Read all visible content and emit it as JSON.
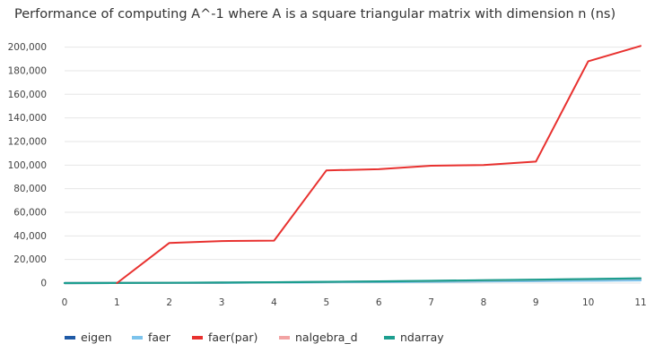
{
  "chart_data": {
    "type": "line",
    "title": "Performance of computing A^-1 where A is a square triangular matrix with dimension n (ns)",
    "xlabel": "",
    "ylabel": "",
    "x": [
      0,
      1,
      2,
      3,
      4,
      5,
      6,
      7,
      8,
      9,
      10,
      11
    ],
    "x_ticks": [
      "0",
      "1",
      "2",
      "3",
      "4",
      "5",
      "6",
      "7",
      "8",
      "9",
      "10",
      "11"
    ],
    "xlim": [
      0,
      11
    ],
    "ylim": [
      0,
      202000
    ],
    "y_ticks": [
      0,
      20000,
      40000,
      60000,
      80000,
      100000,
      120000,
      140000,
      160000,
      180000,
      200000
    ],
    "y_tick_labels": [
      "0",
      "20,000",
      "40,000",
      "60,000",
      "80,000",
      "100,000",
      "120,000",
      "140,000",
      "160,000",
      "180,000",
      "200,000"
    ],
    "grid": true,
    "legend_position": "bottom-left",
    "series": [
      {
        "name": "eigen",
        "color": "#1f5aa6",
        "values": [
          0,
          50,
          150,
          300,
          500,
          800,
          1000,
          1300,
          1600,
          1900,
          2200,
          2500
        ]
      },
      {
        "name": "faer",
        "color": "#7cc3ec",
        "values": [
          0,
          40,
          120,
          250,
          420,
          650,
          850,
          1100,
          1400,
          1700,
          2000,
          2300
        ]
      },
      {
        "name": "faer(par)",
        "color": "#e8312f",
        "values": [
          null,
          0,
          34000,
          35600,
          36000,
          95500,
          96500,
          99500,
          100000,
          103000,
          188000,
          201000
        ]
      },
      {
        "name": "nalgebra_d",
        "color": "#f2a3a3",
        "values": [
          0,
          60,
          200,
          400,
          700,
          1000,
          1400,
          1800,
          2300,
          2800,
          3300,
          3900
        ]
      },
      {
        "name": "ndarray",
        "color": "#1c9e8f",
        "values": [
          0,
          60,
          200,
          420,
          720,
          1050,
          1450,
          1900,
          2400,
          2900,
          3400,
          4000
        ]
      }
    ]
  }
}
